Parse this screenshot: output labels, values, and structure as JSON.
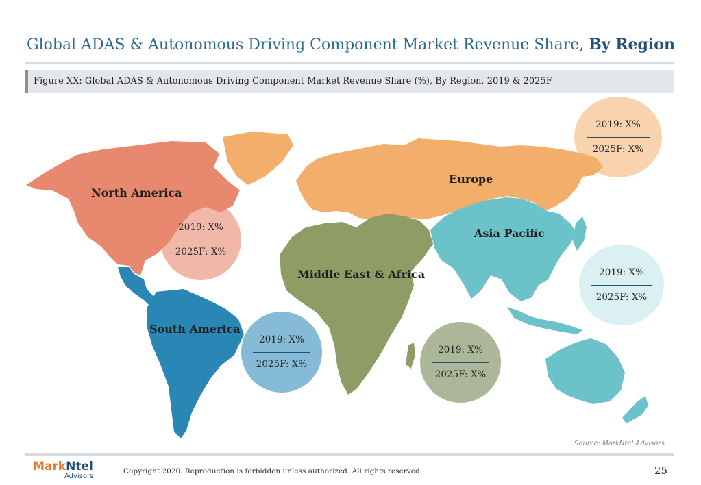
{
  "title": {
    "main": "Global ADAS & Autonomous Driving Component Market Revenue Share, ",
    "accent": "By Region"
  },
  "figure_caption": "Figure XX: Global ADAS & Autonomous Driving Component Market Revenue Share (%), By Region, 2019 & 2025F",
  "colors": {
    "north_america": "#e8896f",
    "europe": "#f2ae6a",
    "asia_pacific": "#6cc2c9",
    "middle_east_africa": "#8e9c66",
    "south_america": "#2a86b4",
    "title": "#2b6a91"
  },
  "regions": {
    "north_america": "North America",
    "europe": "Europe",
    "asia_pacific": "Asia Pacific",
    "middle_east_africa": "Middle East & Africa",
    "south_america": "South America"
  },
  "bubbles": {
    "europe": {
      "y2019": "2019: X%",
      "y2025": "2025F: X%"
    },
    "north_america": {
      "y2019": "2019: X%",
      "y2025": "2025F: X%"
    },
    "asia_pacific": {
      "y2019": "2019: X%",
      "y2025": "2025F: X%"
    },
    "south_america": {
      "y2019": "2019: X%",
      "y2025": "2025F: X%"
    },
    "middle_east_africa": {
      "y2019": "2019: X%",
      "y2025": "2025F: X%"
    }
  },
  "source": "Source: MarkNtel Advisors,",
  "logo": {
    "part1": "Mark",
    "part2": "Ntel",
    "sub": "Advisors"
  },
  "copyright": "Copyright 2020. Reproduction is forbidden unless authorized. All rights reserved.",
  "page_number": "25"
}
